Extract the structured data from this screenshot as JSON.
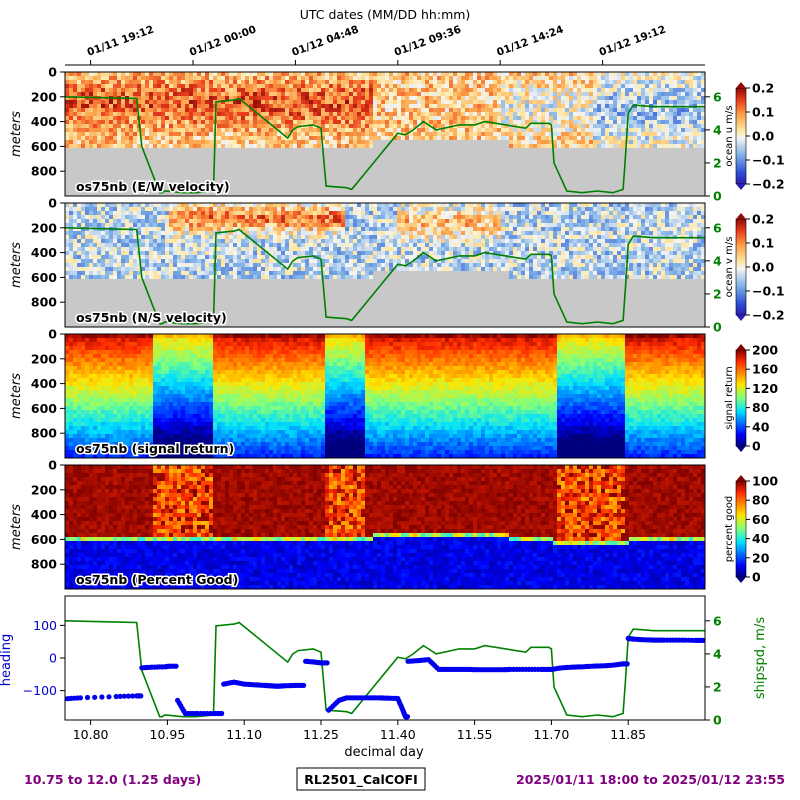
{
  "chart_data": {
    "type": "heatmap",
    "top_axis": {
      "title": "UTC dates (MM/DD hh:mm)",
      "tick_labels": [
        "01/11 19:12",
        "01/12 00:00",
        "01/12 04:48",
        "01/12 09:36",
        "01/12 14:24",
        "01/12 19:12"
      ],
      "tick_days": [
        10.8,
        11.0,
        11.2,
        11.4,
        11.6,
        11.8
      ]
    },
    "x_axis": {
      "label": "decimal day",
      "range": [
        10.75,
        12.0
      ],
      "tick_labels": [
        "10.80",
        "10.95",
        "11.10",
        "11.25",
        "11.40",
        "11.55",
        "11.70",
        "11.85"
      ],
      "tick_values": [
        10.8,
        10.95,
        11.1,
        11.25,
        11.4,
        11.55,
        11.7,
        11.85
      ]
    },
    "depth_axis": {
      "label": "meters",
      "range": [
        0,
        1000
      ],
      "tick_values": [
        0,
        200,
        400,
        600,
        800
      ]
    },
    "speed_axis": {
      "range": [
        0,
        7.5
      ],
      "tick_values": [
        0,
        2,
        4,
        6
      ]
    },
    "panels": [
      {
        "id": "u",
        "label": "os75nb (E/W velocity)",
        "colormap": "RdYlBu_r",
        "colorbar_label": "ocean u m/s",
        "colorbar_ticks": [
          "0.2",
          "0.1",
          "0.0",
          "−0.1",
          "−0.2"
        ],
        "colorbar_range": [
          -0.2,
          0.2
        ],
        "overlay": "shipspd"
      },
      {
        "id": "v",
        "label": "os75nb (N/S velocity)",
        "colormap": "RdYlBu_r",
        "colorbar_label": "ocean v m/s",
        "colorbar_ticks": [
          "0.2",
          "0.1",
          "0.0",
          "−0.1",
          "−0.2"
        ],
        "colorbar_range": [
          -0.2,
          0.2
        ],
        "overlay": "shipspd"
      },
      {
        "id": "amp",
        "label": "os75nb (signal return)",
        "colormap": "jet",
        "colorbar_label": "signal return",
        "colorbar_ticks": [
          "200",
          "160",
          "120",
          "80",
          "40",
          "0"
        ],
        "colorbar_range": [
          0,
          200
        ],
        "overlay": "none"
      },
      {
        "id": "pg",
        "label": "os75nb (Percent Good)",
        "colormap": "jet",
        "colorbar_label": "percent good",
        "colorbar_ticks": [
          "100",
          "80",
          "60",
          "40",
          "20",
          "0"
        ],
        "colorbar_range": [
          0,
          100
        ],
        "overlay": "none"
      }
    ],
    "bottom_panel": {
      "left_label": "heading",
      "left_range": [
        -190,
        190
      ],
      "left_ticks": [
        100,
        0,
        -100
      ],
      "right_label": "shipspd, m/s",
      "right_range": [
        0,
        7.5
      ],
      "right_ticks": [
        0,
        2,
        4,
        6
      ]
    },
    "ship_speed": {
      "day": [
        10.75,
        10.89,
        10.9,
        10.935,
        10.94,
        10.945,
        10.98,
        11.005,
        11.04,
        11.045,
        11.08,
        11.09,
        11.185,
        11.195,
        11.205,
        11.235,
        11.25,
        11.26,
        11.3,
        11.31,
        11.4,
        11.415,
        11.43,
        11.45,
        11.475,
        11.52,
        11.55,
        11.57,
        11.65,
        11.66,
        11.695,
        11.7,
        11.705,
        11.73,
        11.76,
        11.79,
        11.82,
        11.84,
        11.845,
        11.85,
        11.86,
        11.9,
        12.0
      ],
      "speed": [
        6.0,
        5.9,
        3.0,
        0.2,
        0.2,
        0.3,
        0.2,
        0.2,
        0.3,
        5.7,
        5.8,
        5.9,
        3.5,
        4.0,
        4.2,
        4.3,
        4.1,
        0.6,
        0.5,
        0.4,
        3.8,
        3.7,
        4.0,
        4.5,
        4.0,
        4.3,
        4.3,
        4.5,
        4.1,
        4.4,
        4.4,
        4.3,
        2.0,
        0.3,
        0.2,
        0.3,
        0.2,
        0.4,
        2.5,
        5.0,
        5.5,
        5.4,
        5.4
      ]
    },
    "heading": {
      "day": [
        10.75,
        10.78,
        10.85,
        10.89,
        10.9,
        10.92,
        10.945,
        10.955,
        10.97,
        10.985,
        11.01,
        11.04,
        11.06,
        11.08,
        11.1,
        11.12,
        11.14,
        11.15,
        11.16,
        11.17,
        11.18,
        11.2,
        11.22,
        11.235,
        11.25,
        11.265,
        11.285,
        11.3,
        11.32,
        11.34,
        11.36,
        11.38,
        11.4,
        11.41,
        11.415,
        11.42,
        11.44,
        11.46,
        11.48,
        11.5,
        11.52,
        11.54,
        11.56,
        11.58,
        11.6,
        11.62,
        11.65,
        11.68,
        11.7,
        11.72,
        11.74,
        11.76,
        11.78,
        11.8,
        11.82,
        11.84,
        11.85,
        11.86,
        11.88,
        11.9,
        11.92,
        11.95,
        11.98,
        12.0
      ],
      "value": [
        -125,
        -122,
        -118,
        -116,
        -30,
        -28,
        -27,
        -25,
        -130,
        -170,
        -170,
        -170,
        -80,
        -74,
        -80,
        -82,
        -84,
        -85,
        -86,
        -86,
        -85,
        -84,
        -10,
        -12,
        -15,
        -160,
        -130,
        -122,
        -122,
        -122,
        -122,
        -123,
        -124,
        -160,
        -180,
        -10,
        -8,
        -5,
        -35,
        -35,
        -35,
        -35,
        -36,
        -36,
        -36,
        -35,
        -35,
        -35,
        -35,
        -30,
        -28,
        -27,
        -25,
        -24,
        -22,
        -18,
        60,
        58,
        56,
        55,
        55,
        55,
        54,
        54
      ]
    }
  },
  "footer": {
    "left": "10.75 to 12.0 (1.25 days)",
    "center": "RL2501_CalCOFI",
    "right": "2025/01/11 18:00 to 2025/01/12 23:55"
  }
}
